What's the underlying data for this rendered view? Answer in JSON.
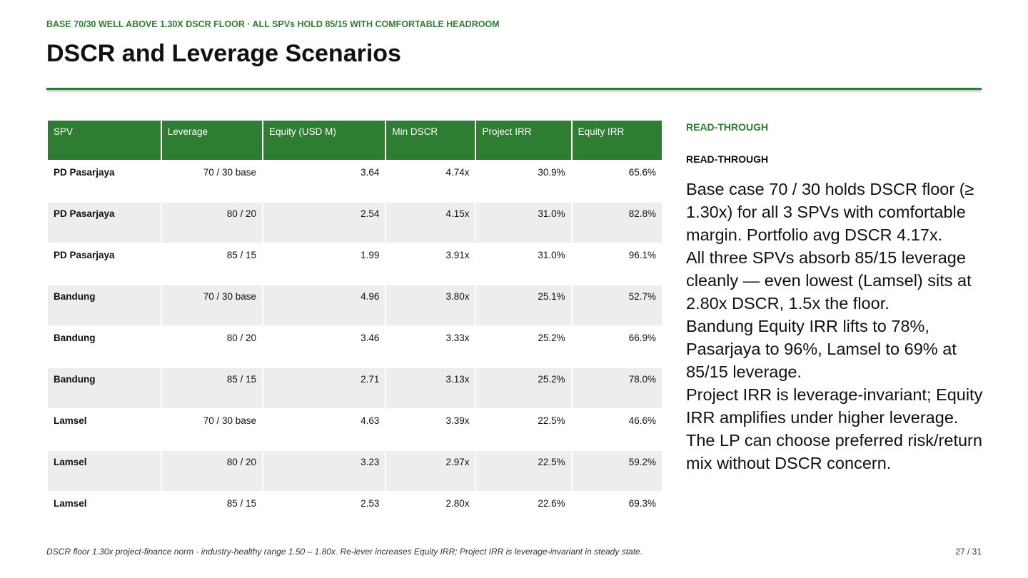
{
  "header": {
    "kicker": "BASE 70/30 WELL ABOVE 1.30X DSCR FLOOR · ALL SPVs HOLD 85/15 WITH COMFORTABLE HEADROOM",
    "title": "DSCR and Leverage Scenarios"
  },
  "table": {
    "columns": [
      "SPV",
      "Leverage",
      "Equity (USD M)",
      "Min DSCR",
      "Project IRR",
      "Equity IRR"
    ],
    "rows": [
      [
        "PD Pasarjaya",
        "70 / 30 base",
        "3.64",
        "4.74x",
        "30.9%",
        "65.6%"
      ],
      [
        "PD Pasarjaya",
        "80 / 20",
        "2.54",
        "4.15x",
        "31.0%",
        "82.8%"
      ],
      [
        "PD Pasarjaya",
        "85 / 15",
        "1.99",
        "3.91x",
        "31.0%",
        "96.1%"
      ],
      [
        "Bandung",
        "70 / 30 base",
        "4.96",
        "3.80x",
        "25.1%",
        "52.7%"
      ],
      [
        "Bandung",
        "80 / 20",
        "3.46",
        "3.33x",
        "25.2%",
        "66.9%"
      ],
      [
        "Bandung",
        "85 / 15",
        "2.71",
        "3.13x",
        "25.2%",
        "78.0%"
      ],
      [
        "Lamsel",
        "70 / 30 base",
        "4.63",
        "3.39x",
        "22.5%",
        "46.6%"
      ],
      [
        "Lamsel",
        "80 / 20",
        "3.23",
        "2.97x",
        "22.5%",
        "59.2%"
      ],
      [
        "Lamsel",
        "85 / 15",
        "2.53",
        "2.80x",
        "22.6%",
        "69.3%"
      ]
    ]
  },
  "side": {
    "label": "READ-THROUGH",
    "heading": "READ-THROUGH",
    "paragraphs": [
      "Base case 70 / 30 holds DSCR floor (≥ 1.30x) for all 3 SPVs with comfortable margin. Portfolio avg DSCR 4.17x.",
      "All three SPVs absorb 85/15 leverage cleanly — even lowest (Lamsel) sits at 2.80x DSCR, 1.5x the floor.",
      "Bandung Equity IRR lifts to 78%, Pasarjaya to 96%, Lamsel to 69% at 85/15 leverage.",
      "Project IRR is leverage-invariant; Equity IRR amplifies under higher leverage. The LP can choose preferred risk/return mix without DSCR concern."
    ]
  },
  "footer": {
    "note": "DSCR floor 1.30x project-finance norm · industry-healthy range 1.50 – 1.80x. Re-lever increases Equity IRR; Project IRR is leverage-invariant in steady state.",
    "page": "27 / 31"
  }
}
